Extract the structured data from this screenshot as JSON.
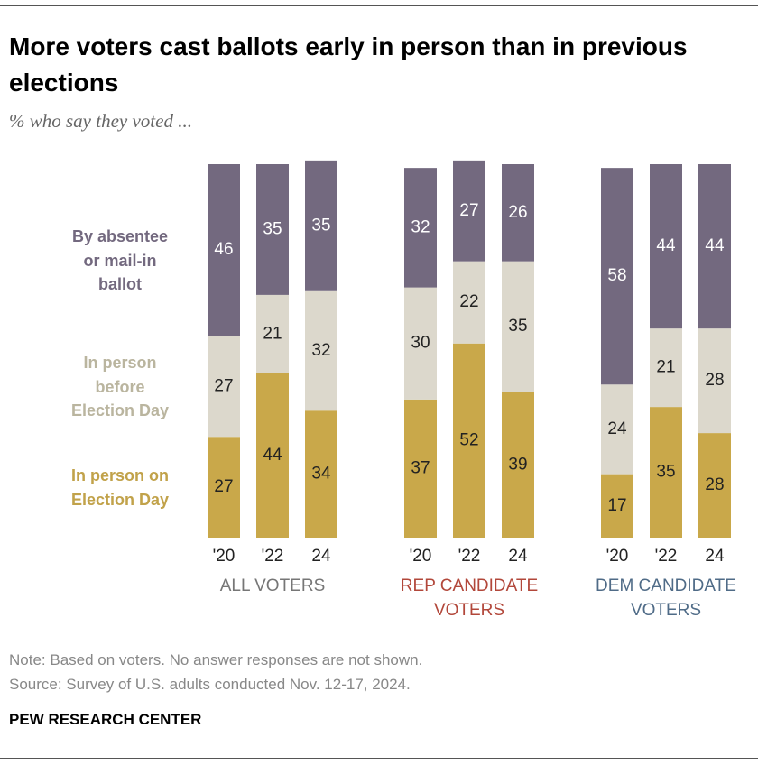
{
  "chart_data": {
    "type": "bar",
    "stacked": true,
    "title": "More voters cast ballots early in person than in previous elections",
    "subtitle": "% who say they voted ...",
    "groups": [
      {
        "label": "ALL VOTERS",
        "color": "#767676",
        "categories": [
          "'20",
          "'22",
          "24"
        ]
      },
      {
        "label": "REP CANDIDATE VOTERS",
        "color": "#b2473a",
        "categories": [
          "'20",
          "'22",
          "24"
        ]
      },
      {
        "label": "DEM CANDIDATE VOTERS",
        "color": "#4f6b87",
        "categories": [
          "'20",
          "'22",
          "24"
        ]
      }
    ],
    "series": [
      {
        "name": "In person on Election Day",
        "color": "#c9a84a",
        "label_color": "#c1a24a",
        "values": [
          27,
          44,
          34,
          37,
          52,
          39,
          17,
          35,
          28
        ]
      },
      {
        "name": "In person before Election Day",
        "color": "#dcd8cc",
        "label_color": "#bab59f",
        "values": [
          27,
          21,
          32,
          30,
          22,
          35,
          24,
          21,
          28
        ]
      },
      {
        "name": "By absentee or mail-in ballot",
        "color": "#73697f",
        "label_color": "#73697f",
        "values": [
          46,
          35,
          35,
          32,
          27,
          26,
          58,
          44,
          44
        ]
      }
    ],
    "ylim": [
      0,
      100
    ],
    "note": "Note: Based on voters. No answer responses are not shown.",
    "source": "Source: Survey of U.S. adults conducted Nov. 12-17, 2024.",
    "brand": "PEW RESEARCH CENTER"
  }
}
